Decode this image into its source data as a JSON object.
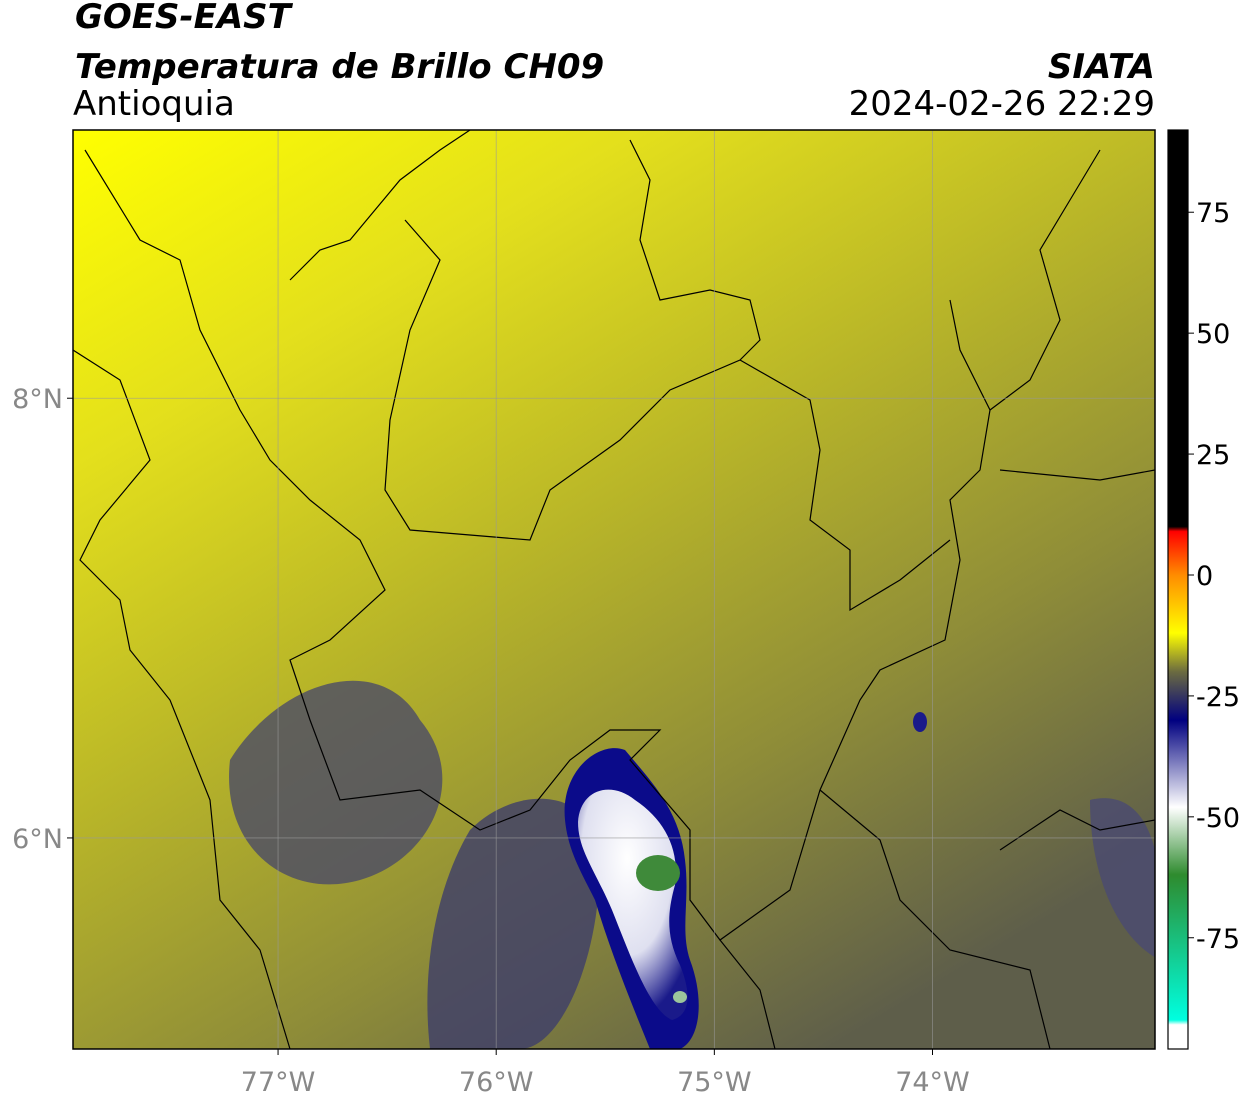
{
  "header": {
    "title": "GOES-EAST",
    "subtitle": "Temperatura de Brillo CH09",
    "region": "Antioquia",
    "source": "SIATA",
    "datetime": "2024-02-26 22:29"
  },
  "map": {
    "lonlim": [
      -77.94,
      -72.98
    ],
    "latlim": [
      5.04,
      9.22
    ],
    "lonticks": [
      {
        "value": -77,
        "label": "77°W"
      },
      {
        "value": -76,
        "label": "76°W"
      },
      {
        "value": -75,
        "label": "75°W"
      },
      {
        "value": -74,
        "label": "74°W"
      }
    ],
    "latticks": [
      {
        "value": 8,
        "label": "8°N"
      },
      {
        "value": 6,
        "label": "6°N"
      }
    ],
    "grid": true
  },
  "colorbar": {
    "range": [
      -98,
      92
    ],
    "ticks": [
      75,
      50,
      25,
      0,
      -25,
      -50,
      -75
    ],
    "stops": [
      {
        "value": 92,
        "color": "#000000"
      },
      {
        "value": 10,
        "color": "#000000"
      },
      {
        "value": 9,
        "color": "#ff0000"
      },
      {
        "value": 0,
        "color": "#ff8c00"
      },
      {
        "value": -12,
        "color": "#ffff00"
      },
      {
        "value": -20,
        "color": "#6b6b40"
      },
      {
        "value": -30,
        "color": "#000080"
      },
      {
        "value": -48,
        "color": "#ffffff"
      },
      {
        "value": -62,
        "color": "#2e8b2e"
      },
      {
        "value": -92,
        "color": "#00ffe0"
      },
      {
        "value": -93,
        "color": "#ffffff"
      },
      {
        "value": -98,
        "color": "#ffffff"
      }
    ]
  }
}
